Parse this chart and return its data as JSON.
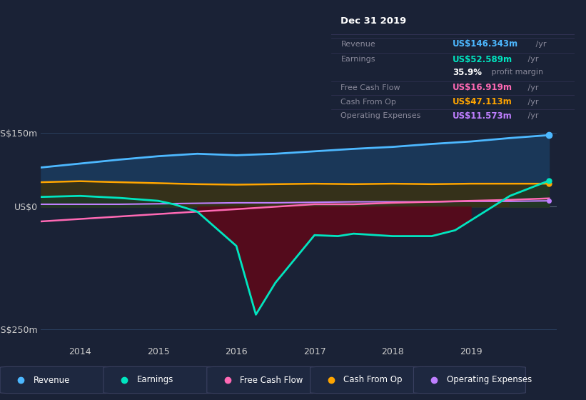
{
  "bg_color": "#1a2236",
  "title_box_date": "Dec 31 2019",
  "ytick_labels": [
    "US$150m",
    "US$0",
    "-US$250m"
  ],
  "ytick_values": [
    150,
    0,
    -250
  ],
  "xlim": [
    2013.5,
    2020.1
  ],
  "ylim": [
    -280,
    185
  ],
  "xtick_values": [
    2014,
    2015,
    2016,
    2017,
    2018,
    2019
  ],
  "grid_color": "#2a3f5f",
  "revenue": {
    "x": [
      2013.5,
      2014.0,
      2014.5,
      2015.0,
      2015.5,
      2016.0,
      2016.5,
      2017.0,
      2017.5,
      2018.0,
      2018.5,
      2019.0,
      2019.5,
      2020.0
    ],
    "y": [
      80,
      88,
      96,
      103,
      108,
      105,
      108,
      113,
      118,
      122,
      128,
      133,
      140,
      146
    ],
    "color": "#4db8ff",
    "fill_color": "#1a3a5c",
    "label": "Revenue"
  },
  "cash_from_op": {
    "x": [
      2013.5,
      2014.0,
      2014.5,
      2015.0,
      2015.5,
      2016.0,
      2016.5,
      2017.0,
      2017.5,
      2018.0,
      2018.5,
      2019.0,
      2019.5,
      2020.0
    ],
    "y": [
      50,
      52,
      50,
      48,
      46,
      45,
      46,
      47,
      46,
      47,
      46,
      47,
      47,
      47
    ],
    "color": "#ffa500",
    "fill_color": "#3a3010",
    "label": "Cash From Op"
  },
  "earnings": {
    "x": [
      2013.5,
      2014.0,
      2014.5,
      2015.0,
      2015.2,
      2015.5,
      2016.0,
      2016.25,
      2016.5,
      2017.0,
      2017.3,
      2017.5,
      2018.0,
      2018.5,
      2018.8,
      2019.0,
      2019.5,
      2020.0
    ],
    "y": [
      20,
      22,
      18,
      12,
      5,
      -10,
      -80,
      -220,
      -155,
      -58,
      -60,
      -55,
      -60,
      -60,
      -48,
      -28,
      22,
      53
    ],
    "color": "#00e5c0",
    "fill_color_neg": "#5a0a1a",
    "fill_color_pos": "#1a3a2a",
    "label": "Earnings"
  },
  "free_cash_flow": {
    "x": [
      2013.5,
      2014.0,
      2014.5,
      2015.0,
      2015.5,
      2016.0,
      2016.5,
      2017.0,
      2017.5,
      2018.0,
      2018.5,
      2019.0,
      2019.5,
      2020.0
    ],
    "y": [
      -30,
      -25,
      -20,
      -15,
      -10,
      -5,
      0,
      5,
      5,
      8,
      10,
      12,
      14,
      17
    ],
    "color": "#ff69b4",
    "label": "Free Cash Flow"
  },
  "operating_expenses": {
    "x": [
      2013.5,
      2014.0,
      2014.5,
      2015.0,
      2015.5,
      2016.0,
      2016.5,
      2017.0,
      2017.5,
      2018.0,
      2018.5,
      2019.0,
      2019.5,
      2020.0
    ],
    "y": [
      5,
      5,
      5,
      6,
      7,
      8,
      8,
      9,
      10,
      10,
      10,
      11,
      11,
      12
    ],
    "color": "#bf7fff",
    "label": "Operating Expenses"
  },
  "legend_items": [
    {
      "label": "Revenue",
      "color": "#4db8ff"
    },
    {
      "label": "Earnings",
      "color": "#00e5c0"
    },
    {
      "label": "Free Cash Flow",
      "color": "#ff69b4"
    },
    {
      "label": "Cash From Op",
      "color": "#ffa500"
    },
    {
      "label": "Operating Expenses",
      "color": "#bf7fff"
    }
  ],
  "info_box": {
    "date": "Dec 31 2019",
    "rows": [
      {
        "label": "Revenue",
        "value": "US$146.343m",
        "unit": " /yr",
        "value_color": "#4db8ff"
      },
      {
        "label": "Earnings",
        "value": "US$52.589m",
        "unit": " /yr",
        "value_color": "#00e5c0"
      },
      {
        "label": "",
        "value": "35.9%",
        "unit": " profit margin",
        "value_color": "#ffffff"
      },
      {
        "label": "Free Cash Flow",
        "value": "US$16.919m",
        "unit": " /yr",
        "value_color": "#ff69b4"
      },
      {
        "label": "Cash From Op",
        "value": "US$47.113m",
        "unit": " /yr",
        "value_color": "#ffa500"
      },
      {
        "label": "Operating Expenses",
        "value": "US$11.573m",
        "unit": " /yr",
        "value_color": "#bf7fff"
      }
    ]
  }
}
